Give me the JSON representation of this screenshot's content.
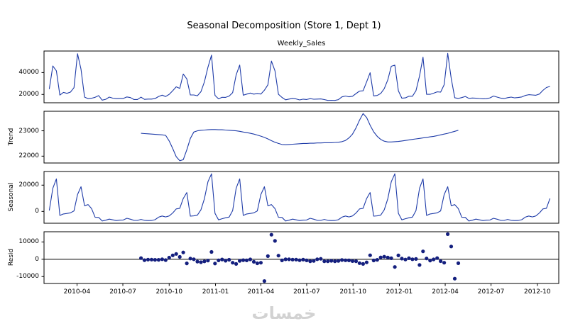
{
  "figure": {
    "title": "Seasonal Decomposition (Store 1, Dept 1)",
    "watermark": "خمسات"
  },
  "chart_data": {
    "type": "line",
    "title": "Seasonal Decomposition (Store 1, Dept 1)",
    "x_unit": "week",
    "x_start_date": "2010-02-05",
    "x_freq_days": 7,
    "n_points": 143,
    "legend": "none",
    "grid": false,
    "x_ticks": [
      {
        "label": "2010-04",
        "week": 7.86
      },
      {
        "label": "2010-07",
        "week": 20.86
      },
      {
        "label": "2010-10",
        "week": 34.0
      },
      {
        "label": "2011-01",
        "week": 47.14
      },
      {
        "label": "2011-04",
        "week": 60.0
      },
      {
        "label": "2011-07",
        "week": 73.0
      },
      {
        "label": "2011-10",
        "week": 86.14
      },
      {
        "label": "2012-01",
        "week": 99.29
      },
      {
        "label": "2012-04",
        "week": 112.29
      },
      {
        "label": "2012-07",
        "week": 125.29
      },
      {
        "label": "2012-10",
        "week": 138.43
      }
    ],
    "colors": {
      "line": "#1e3ba8",
      "marker": "#141f7e",
      "axis": "#000000"
    },
    "panels": [
      {
        "key": "observed",
        "title": "Weekly_Sales",
        "ylabel": "",
        "plot": "line",
        "yticks": [
          20000,
          40000
        ],
        "ylim": [
          12400,
          59700
        ],
        "start_index": 0,
        "values": [
          24924,
          46039,
          41596,
          19404,
          21828,
          21043,
          22137,
          26229,
          57258,
          42961,
          17597,
          16145,
          16555,
          17414,
          18927,
          14773,
          15580,
          17558,
          16638,
          16216,
          16329,
          16333,
          17689,
          17151,
          15360,
          15382,
          17508,
          15536,
          15740,
          15794,
          16242,
          18195,
          19354,
          18123,
          20094,
          23388,
          26978,
          25543,
          38641,
          34239,
          19549,
          19553,
          18820,
          22518,
          31498,
          44913,
          55931,
          19125,
          15984,
          17360,
          17341,
          18461,
          21666,
          37887,
          46846,
          19364,
          20328,
          21280,
          20334,
          20881,
          20398,
          23874,
          28762,
          50510,
          41512,
          20138,
          17235,
          15137,
          15742,
          16434,
          15884,
          14978,
          15683,
          15364,
          16149,
          15655,
          15767,
          15922,
          15296,
          14540,
          14689,
          14537,
          15277,
          17747,
          18535,
          17859,
          18338,
          20798,
          23078,
          23352,
          31580,
          39886,
          18690,
          19051,
          20911,
          25293,
          33306,
          45773,
          46789,
          23351,
          16568,
          16894,
          18365,
          18378,
          23510,
          36989,
          54060,
          20124,
          20113,
          21140,
          22367,
          22108,
          28953,
          57592,
          34684,
          16976,
          16348,
          17147,
          18164,
          16426,
          16751,
          16568,
          16310,
          16052,
          16180,
          16902,
          18546,
          17560,
          16675,
          16227,
          17085,
          17600,
          16886,
          17173,
          17726,
          19089,
          19768,
          19514,
          19296,
          20398,
          23751,
          26338,
          27390
        ]
      },
      {
        "key": "trend",
        "ylabel": "Trend",
        "plot": "line",
        "yticks": [
          22000,
          23000
        ],
        "ylim": [
          21730,
          23770
        ],
        "start_index": 26,
        "values": [
          22900,
          22890,
          22880,
          22870,
          22860,
          22850,
          22840,
          22820,
          22600,
          22300,
          21980,
          21820,
          21860,
          22250,
          22700,
          22950,
          23000,
          23020,
          23030,
          23040,
          23050,
          23050,
          23040,
          23040,
          23030,
          23020,
          23010,
          23000,
          22980,
          22950,
          22930,
          22900,
          22870,
          22830,
          22790,
          22740,
          22680,
          22610,
          22550,
          22500,
          22460,
          22450,
          22460,
          22470,
          22480,
          22490,
          22500,
          22500,
          22510,
          22510,
          22520,
          22520,
          22530,
          22530,
          22530,
          22540,
          22550,
          22570,
          22620,
          22720,
          22870,
          23120,
          23420,
          23680,
          23520,
          23220,
          22960,
          22780,
          22660,
          22590,
          22560,
          22560,
          22570,
          22580,
          22600,
          22620,
          22640,
          22660,
          22680,
          22700,
          22720,
          22740,
          22760,
          22780,
          22810,
          22840,
          22870,
          22900,
          22940,
          22980,
          23020
        ]
      },
      {
        "key": "seasonal",
        "ylabel": "Seasonal",
        "plot": "line",
        "yticks": [
          0,
          20000
        ],
        "ylim": [
          -9000,
          30400
        ],
        "start_index": 0,
        "pattern_period": 52,
        "length": 143,
        "pattern": [
          670,
          17600,
          24800,
          -3070,
          -1940,
          -1550,
          -1090,
          370,
          12840,
          18780,
          4310,
          5180,
          2110,
          -4470,
          -4590,
          -7260,
          -6680,
          -5850,
          -6420,
          -6950,
          -6640,
          -6500,
          -5240,
          -5910,
          -6770,
          -6860,
          -6070,
          -6810,
          -6930,
          -6870,
          -6290,
          -4360,
          -3480,
          -4200,
          -3460,
          -1170,
          1900,
          2380,
          9840,
          14360,
          -3580,
          -3400,
          -2830,
          1210,
          9700,
          22640,
          28660,
          -1460,
          -6420,
          -5570,
          -4850,
          -4280
        ]
      },
      {
        "key": "resid",
        "ylabel": "Resid",
        "plot": "scatter",
        "yticks": [
          -10000,
          0,
          10000
        ],
        "ylim": [
          -14000,
          15900
        ],
        "start_index": 26,
        "zero_line": 0,
        "values": [
          680,
          -540,
          -210,
          -200,
          -330,
          -300,
          -10,
          -500,
          950,
          2260,
          3100,
          1340,
          3940,
          -2370,
          430,
          0,
          -1350,
          -1710,
          -1230,
          -770,
          4220,
          -2470,
          -640,
          -110,
          -840,
          -280,
          -2010,
          -2710,
          -930,
          -520,
          -660,
          -70,
          -1450,
          -2320,
          -2000,
          -12600,
          1800,
          14200,
          10600,
          2100,
          -640,
          -50,
          -40,
          -190,
          -180,
          -560,
          -180,
          -640,
          -1120,
          -950,
          20,
          260,
          -1160,
          -1180,
          -910,
          -1130,
          -980,
          -460,
          -600,
          -660,
          -1070,
          -1150,
          -2240,
          -2710,
          -1780,
          2310,
          -690,
          -330,
          1080,
          1490,
          1050,
          570,
          -4440,
          2230,
          390,
          -160,
          580,
          0,
          160,
          -3310,
          4540,
          450,
          -710,
          -90,
          650,
          -1100,
          -2000,
          14500,
          7400,
          -11200,
          -2300
        ]
      }
    ]
  }
}
